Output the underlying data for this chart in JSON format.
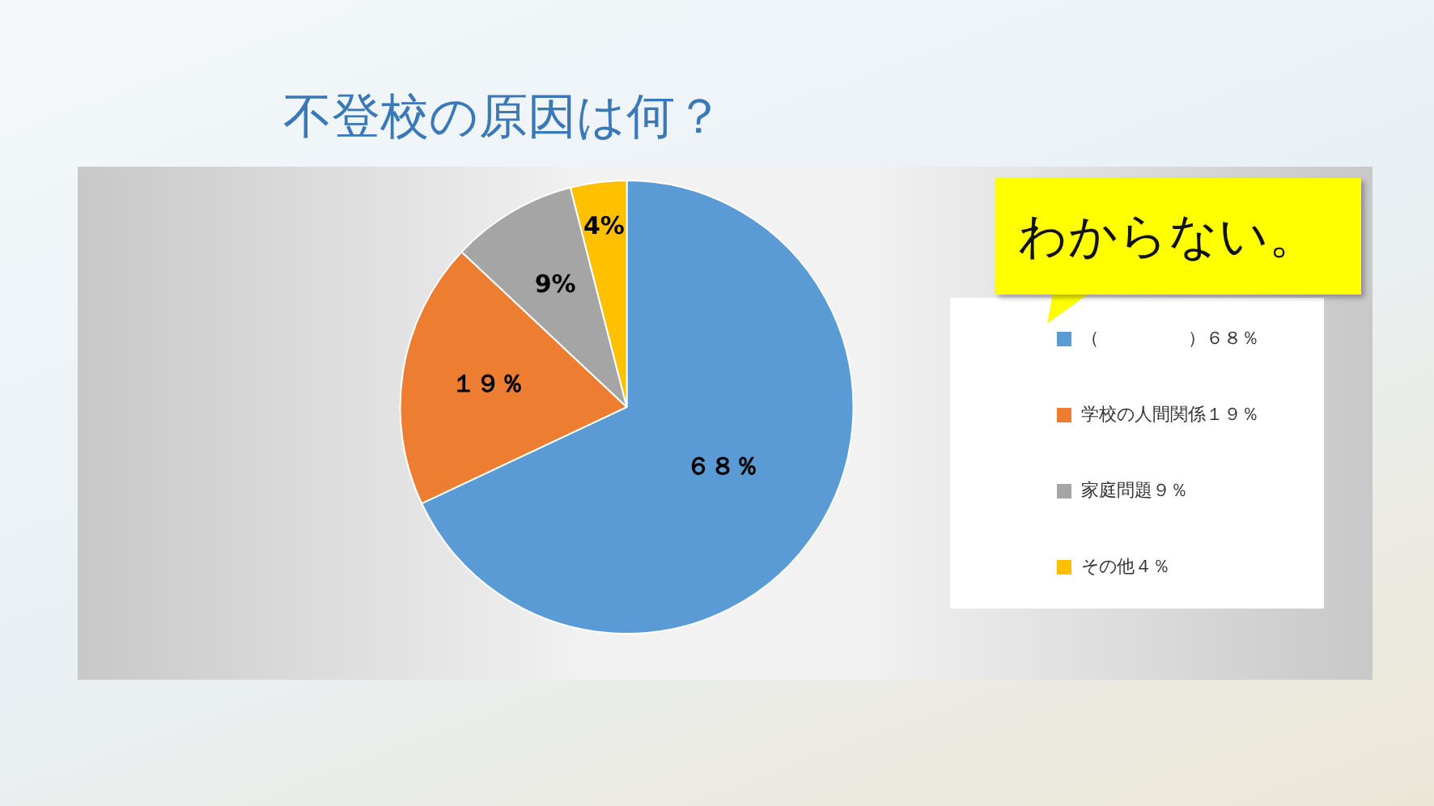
{
  "chart_data": {
    "type": "pie",
    "title": "不登校の原因は何？",
    "categories": [
      "（　　　　　）６８％",
      "学校の人間関係１９％",
      "家庭問題９％",
      "その他４％"
    ],
    "values": [
      68,
      19,
      9,
      4
    ],
    "colors": [
      "#5b9bd5",
      "#ed7d31",
      "#a5a5a5",
      "#ffc000"
    ],
    "value_labels": [
      "６８％",
      "１９％",
      "9%",
      "4%"
    ],
    "legend": "right",
    "annotations": [
      "わからない。"
    ]
  }
}
